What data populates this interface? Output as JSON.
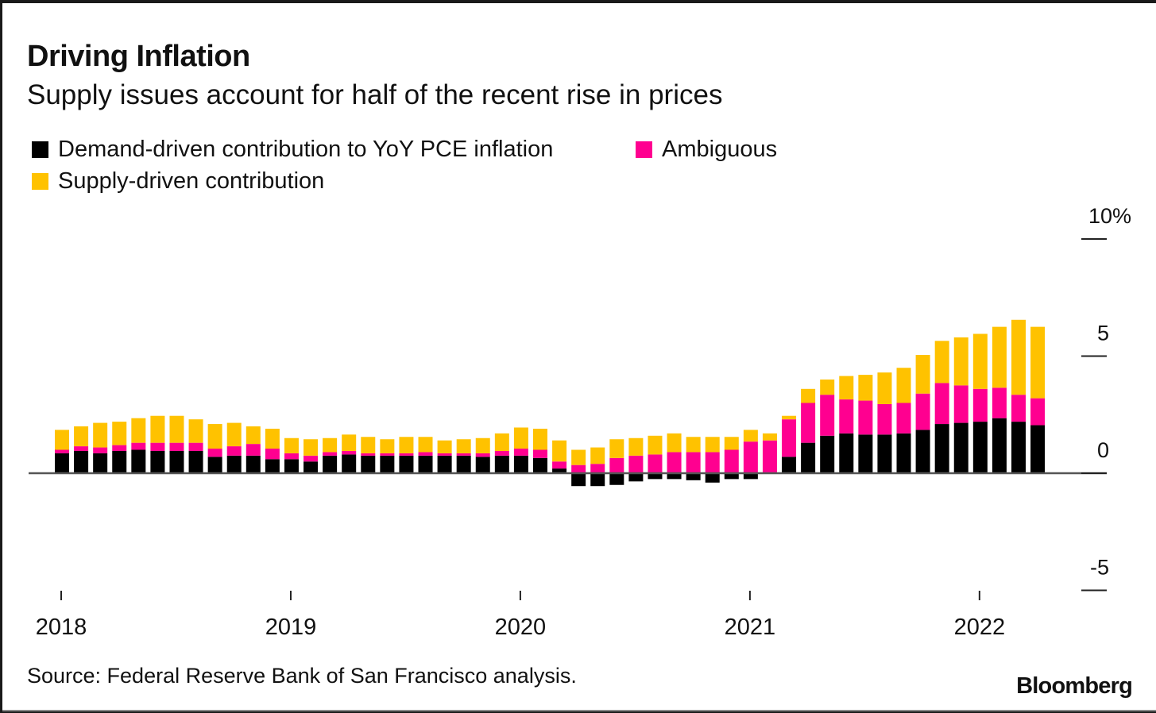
{
  "header": {
    "title": "Driving Inflation",
    "subtitle": "Supply issues account for half of the recent rise in prices"
  },
  "footer": {
    "source": "Source: Federal Reserve Bank of San Francisco analysis.",
    "brand": "Bloomberg"
  },
  "chart_data": {
    "type": "bar",
    "stacked": true,
    "title": "Driving Inflation",
    "subtitle": "Supply issues account for half of the recent rise in prices",
    "xlabel": "",
    "ylabel": "",
    "ylim": [
      -5,
      10
    ],
    "yticks": [
      10,
      5,
      0,
      -5
    ],
    "ytick_labels": [
      "10%",
      "5",
      "0",
      "-5"
    ],
    "y_axis_position": "right",
    "xticks": [
      {
        "label": "2018",
        "index": 0
      },
      {
        "label": "2019",
        "index": 12
      },
      {
        "label": "2020",
        "index": 24
      },
      {
        "label": "2021",
        "index": 36
      },
      {
        "label": "2022",
        "index": 48
      }
    ],
    "grid": false,
    "legend_position": "top-left",
    "categories": [
      "2018-01",
      "2018-02",
      "2018-03",
      "2018-04",
      "2018-05",
      "2018-06",
      "2018-07",
      "2018-08",
      "2018-09",
      "2018-10",
      "2018-11",
      "2018-12",
      "2019-01",
      "2019-02",
      "2019-03",
      "2019-04",
      "2019-05",
      "2019-06",
      "2019-07",
      "2019-08",
      "2019-09",
      "2019-10",
      "2019-11",
      "2019-12",
      "2020-01",
      "2020-02",
      "2020-03",
      "2020-04",
      "2020-05",
      "2020-06",
      "2020-07",
      "2020-08",
      "2020-09",
      "2020-10",
      "2020-11",
      "2020-12",
      "2021-01",
      "2021-02",
      "2021-03",
      "2021-04",
      "2021-05",
      "2021-06",
      "2021-07",
      "2021-08",
      "2021-09",
      "2021-10",
      "2021-11",
      "2021-12",
      "2022-01",
      "2022-02",
      "2022-03",
      "2022-04"
    ],
    "series": [
      {
        "name": "Demand-driven contribution to YoY PCE inflation",
        "color": "#000000",
        "values": [
          0.85,
          0.95,
          0.85,
          0.95,
          1.0,
          0.95,
          0.95,
          0.95,
          0.7,
          0.75,
          0.75,
          0.6,
          0.6,
          0.5,
          0.75,
          0.8,
          0.75,
          0.75,
          0.75,
          0.75,
          0.75,
          0.75,
          0.7,
          0.75,
          0.75,
          0.65,
          0.2,
          -0.55,
          -0.55,
          -0.5,
          -0.35,
          -0.25,
          -0.25,
          -0.3,
          -0.4,
          -0.25,
          -0.25,
          0.0,
          0.7,
          1.3,
          1.6,
          1.7,
          1.65,
          1.65,
          1.7,
          1.85,
          2.1,
          2.15,
          2.2,
          2.35,
          2.2,
          2.05
        ]
      },
      {
        "name": "Ambiguous",
        "color": "#ff0090",
        "values": [
          0.15,
          0.2,
          0.25,
          0.25,
          0.3,
          0.35,
          0.35,
          0.35,
          0.35,
          0.4,
          0.5,
          0.45,
          0.25,
          0.25,
          0.15,
          0.15,
          0.1,
          0.1,
          0.1,
          0.15,
          0.1,
          0.1,
          0.15,
          0.2,
          0.3,
          0.35,
          0.3,
          0.35,
          0.4,
          0.65,
          0.75,
          0.8,
          0.9,
          0.9,
          0.9,
          1.0,
          1.35,
          1.4,
          1.6,
          1.7,
          1.75,
          1.45,
          1.45,
          1.3,
          1.3,
          1.55,
          1.75,
          1.6,
          1.4,
          1.3,
          1.15,
          1.15
        ]
      },
      {
        "name": "Supply-driven contribution",
        "color": "#ffc200",
        "values": [
          0.85,
          0.85,
          1.05,
          1.0,
          1.05,
          1.15,
          1.15,
          1.0,
          1.05,
          1.0,
          0.75,
          0.85,
          0.65,
          0.7,
          0.6,
          0.7,
          0.7,
          0.6,
          0.7,
          0.65,
          0.55,
          0.6,
          0.65,
          0.75,
          0.9,
          0.9,
          0.9,
          0.65,
          0.7,
          0.8,
          0.75,
          0.8,
          0.8,
          0.65,
          0.65,
          0.55,
          0.5,
          0.3,
          0.15,
          0.6,
          0.65,
          1.0,
          1.1,
          1.35,
          1.5,
          1.65,
          1.8,
          2.05,
          2.35,
          2.6,
          3.2,
          3.05
        ]
      }
    ]
  }
}
